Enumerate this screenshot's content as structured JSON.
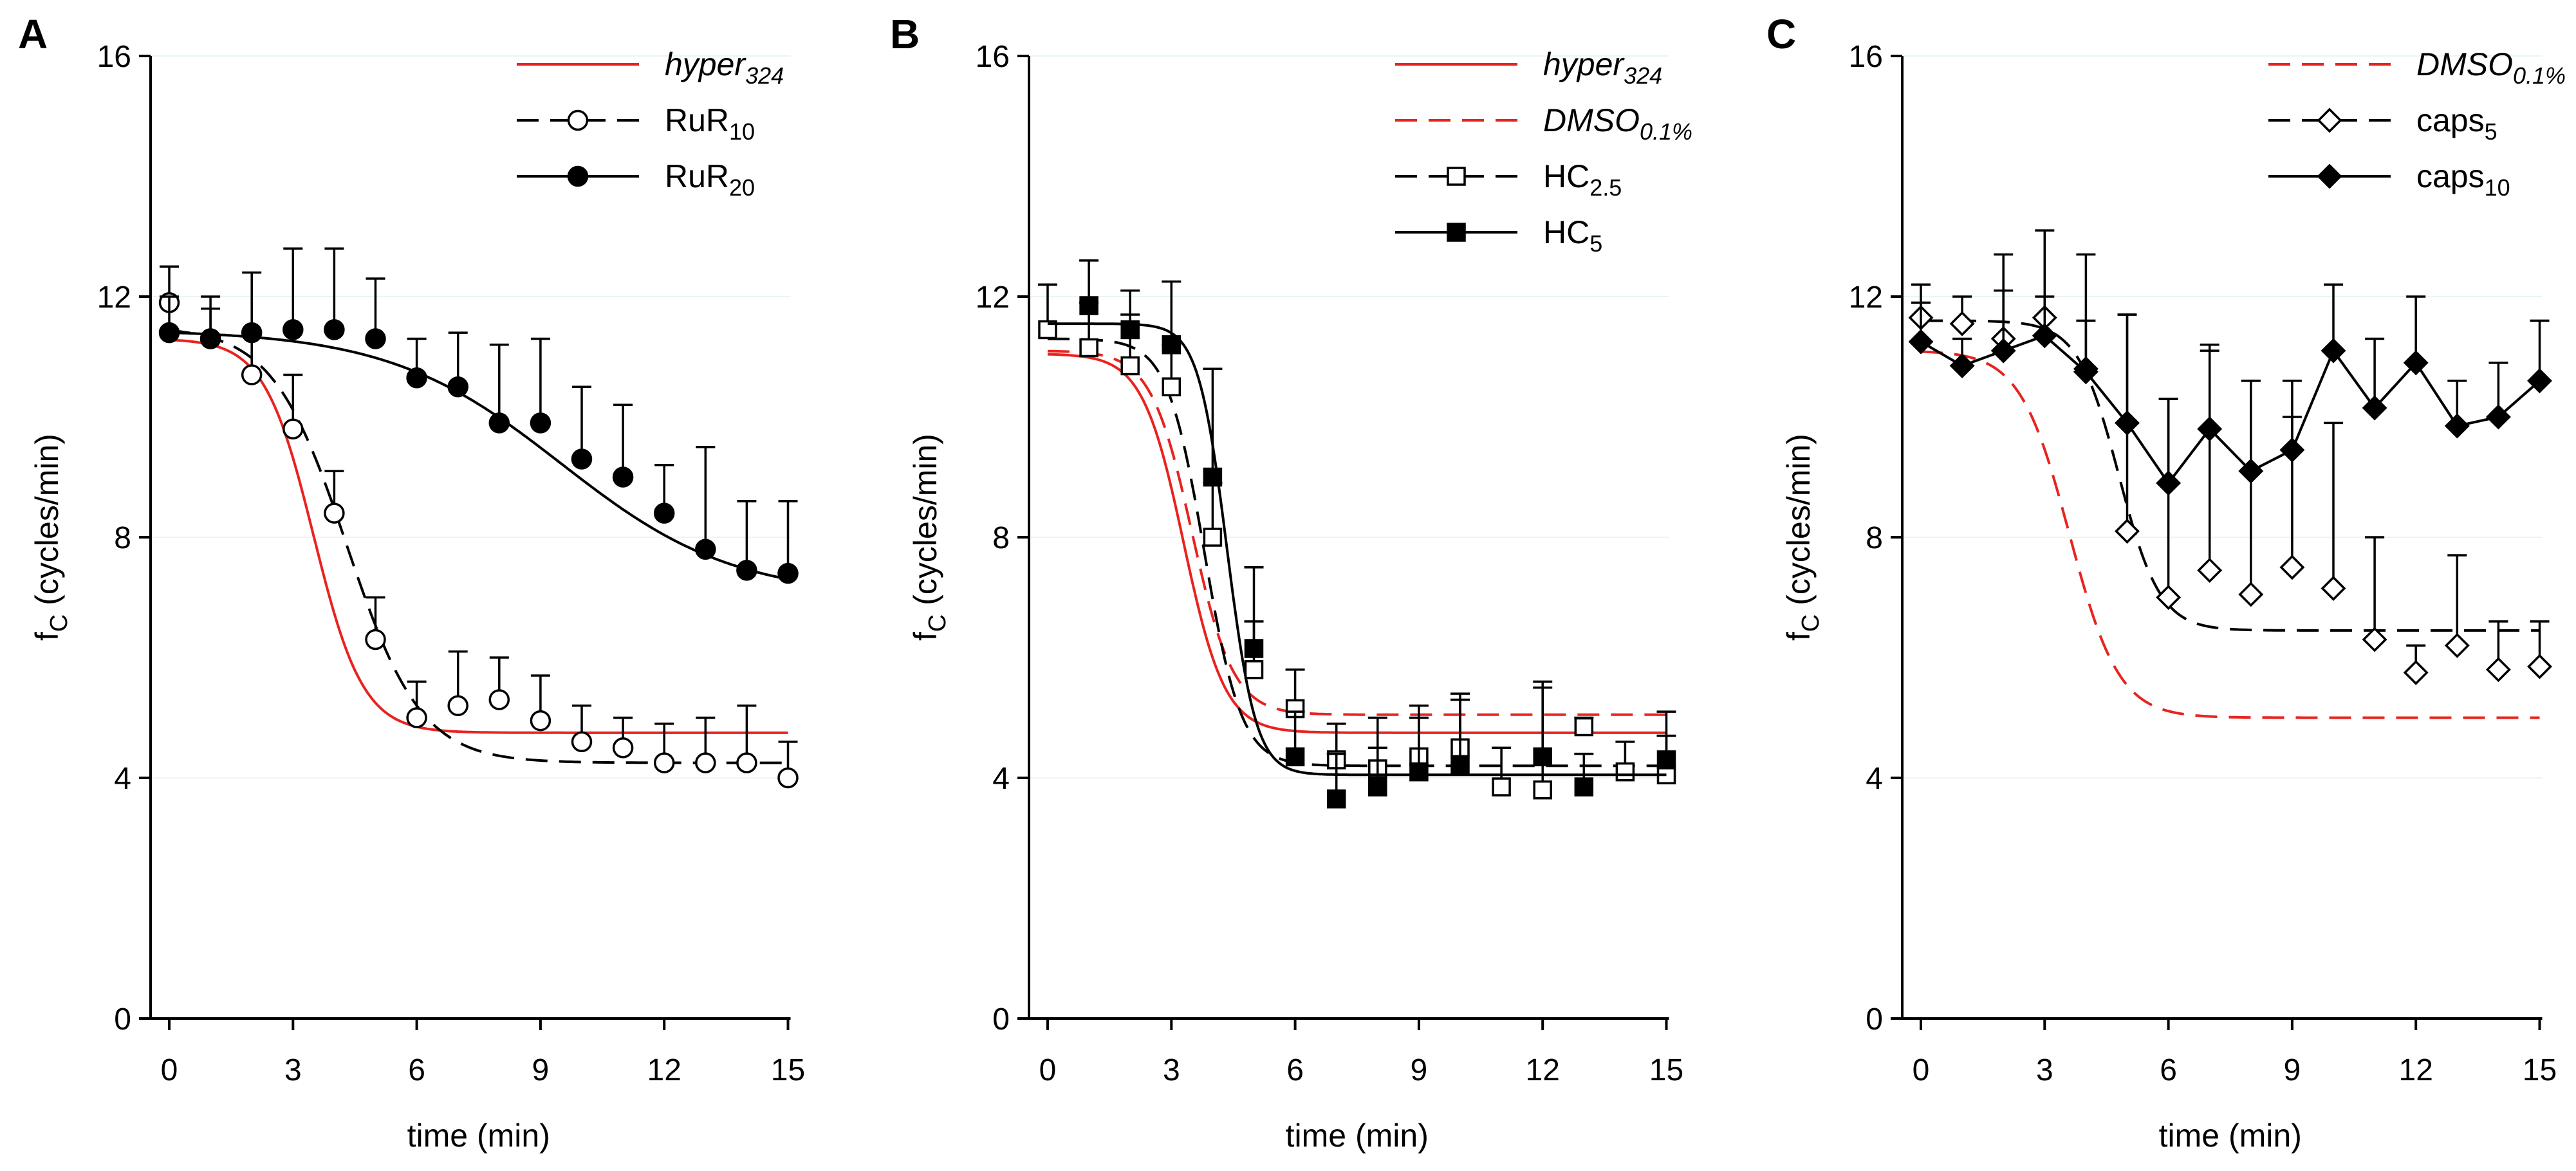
{
  "figure": {
    "axis_labels": {
      "x": "time (min)",
      "y_main": "f",
      "y_sub": "C",
      "y_unit": "(cycles/min)"
    }
  },
  "chart_data": [
    {
      "panel": "A",
      "type": "line",
      "xlabel": "time (min)",
      "ylabel": "fC (cycles/min)",
      "xlim": [
        -0.5,
        15
      ],
      "ylim": [
        0,
        16
      ],
      "xticks": [
        0,
        3,
        6,
        9,
        12,
        15
      ],
      "yticks": [
        0,
        4,
        8,
        12,
        16
      ],
      "legend_position": "top-right",
      "series": [
        {
          "name": "hyper324",
          "label_main": "hyper",
          "label_sub": "324",
          "italic": true,
          "color": "#e8231f",
          "dash": "solid",
          "marker": "none",
          "fit": {
            "top": 11.3,
            "bottom": 4.75,
            "x50": 3.5,
            "slope": 0.6
          }
        },
        {
          "name": "RuR10",
          "label_main": "RuR",
          "label_sub": "10",
          "italic": false,
          "color": "#000000",
          "dash": "dashed",
          "marker": "open-circle",
          "x": [
            0,
            1,
            2,
            3,
            4,
            5,
            6,
            7,
            8,
            9,
            10,
            11,
            12,
            13,
            14,
            15
          ],
          "y": [
            11.9,
            11.3,
            10.7,
            9.8,
            8.4,
            6.3,
            5.0,
            5.2,
            5.3,
            4.95,
            4.6,
            4.5,
            4.25,
            4.25,
            4.25,
            4.0
          ],
          "err": [
            12.5,
            11.8,
            11.4,
            10.7,
            9.1,
            7.0,
            5.6,
            6.1,
            6.0,
            5.7,
            5.2,
            5.0,
            4.9,
            5.0,
            5.2,
            4.6
          ],
          "fit": {
            "top": 11.5,
            "bottom": 4.25,
            "x50": 4.3,
            "slope": 0.9
          }
        },
        {
          "name": "RuR20",
          "label_main": "RuR",
          "label_sub": "20",
          "italic": false,
          "color": "#000000",
          "dash": "solid",
          "marker": "filled-circle",
          "x": [
            0,
            1,
            2,
            3,
            4,
            5,
            6,
            7,
            8,
            9,
            10,
            11,
            12,
            13,
            14,
            15
          ],
          "y": [
            11.4,
            11.3,
            11.4,
            11.45,
            11.45,
            11.3,
            10.65,
            10.5,
            9.9,
            9.9,
            9.3,
            9.0,
            8.4,
            7.8,
            7.45,
            7.4
          ],
          "err": [
            12.0,
            12.0,
            12.4,
            12.8,
            12.8,
            12.3,
            11.3,
            11.4,
            11.2,
            11.3,
            10.5,
            10.2,
            9.2,
            9.5,
            8.6,
            8.6
          ],
          "fit": {
            "top": 11.45,
            "bottom": 7.0,
            "x50": 9.5,
            "slope": 2.1
          }
        }
      ]
    },
    {
      "panel": "B",
      "type": "line",
      "xlabel": "time (min)",
      "ylabel": "fC (cycles/min)",
      "xlim": [
        -0.5,
        15
      ],
      "ylim": [
        0,
        16
      ],
      "xticks": [
        0,
        3,
        6,
        9,
        12,
        15
      ],
      "yticks": [
        0,
        4,
        8,
        12,
        16
      ],
      "legend_position": "top-right",
      "series": [
        {
          "name": "hyper324",
          "label_main": "hyper",
          "label_sub": "324",
          "italic": true,
          "color": "#e8231f",
          "dash": "solid",
          "marker": "none",
          "fit": {
            "top": 11.05,
            "bottom": 4.75,
            "x50": 3.3,
            "slope": 0.5
          }
        },
        {
          "name": "DMSO0.1%",
          "label_main": "DMSO",
          "label_sub": "0.1%",
          "italic": true,
          "color": "#e8231f",
          "dash": "dashed",
          "marker": "none",
          "fit": {
            "top": 11.1,
            "bottom": 5.05,
            "x50": 3.5,
            "slope": 0.5
          }
        },
        {
          "name": "HC2.5",
          "label_main": "HC",
          "label_sub": "2.5",
          "italic": false,
          "color": "#000000",
          "dash": "dashed",
          "marker": "open-square",
          "x": [
            0,
            1,
            2,
            3,
            4,
            5,
            6,
            7,
            8,
            9,
            10,
            11,
            12,
            13,
            14,
            15
          ],
          "y": [
            11.45,
            11.15,
            10.85,
            10.5,
            8.0,
            5.8,
            5.15,
            4.3,
            4.15,
            4.35,
            4.5,
            3.85,
            3.8,
            4.85,
            4.1,
            4.05
          ],
          "err": [
            12.2,
            11.9,
            11.7,
            11.2,
            8.9,
            6.6,
            5.8,
            4.9,
            5.0,
            5.2,
            5.3,
            4.5,
            5.5,
            5.0,
            4.6,
            4.7
          ],
          "fit": {
            "top": 11.3,
            "bottom": 4.2,
            "x50": 3.8,
            "slope": 0.45
          }
        },
        {
          "name": "HC5",
          "label_main": "HC",
          "label_sub": "5",
          "italic": false,
          "color": "#000000",
          "dash": "solid",
          "marker": "filled-square",
          "x": [
            1,
            2,
            3,
            4,
            5,
            6,
            7,
            8,
            9,
            10,
            12,
            13,
            15
          ],
          "y": [
            11.85,
            11.45,
            11.2,
            9.0,
            6.15,
            4.35,
            3.65,
            3.85,
            4.1,
            4.2,
            4.35,
            3.85,
            4.3
          ],
          "err": [
            12.6,
            12.1,
            12.25,
            10.8,
            7.5,
            5.1,
            4.4,
            4.5,
            5.0,
            5.4,
            5.6,
            4.4,
            5.1
          ],
          "fit": {
            "top": 11.55,
            "bottom": 4.05,
            "x50": 4.35,
            "slope": 0.35
          }
        }
      ]
    },
    {
      "panel": "C",
      "type": "line",
      "xlabel": "time (min)",
      "ylabel": "fC (cycles/min)",
      "xlim": [
        -0.5,
        15
      ],
      "ylim": [
        0,
        16
      ],
      "xticks": [
        0,
        3,
        6,
        9,
        12,
        15
      ],
      "yticks": [
        0,
        4,
        8,
        12,
        16
      ],
      "legend_position": "top-right",
      "series": [
        {
          "name": "DMSO0.1%",
          "label_main": "DMSO",
          "label_sub": "0.1%",
          "italic": true,
          "color": "#e8231f",
          "dash": "dashed",
          "marker": "none",
          "fit": {
            "top": 11.1,
            "bottom": 5.0,
            "x50": 3.6,
            "slope": 0.6
          }
        },
        {
          "name": "caps5",
          "label_main": "caps",
          "label_sub": "5",
          "italic": false,
          "color": "#000000",
          "dash": "dashed",
          "marker": "open-diamond",
          "x": [
            0,
            1,
            2,
            3,
            4,
            5,
            6,
            7,
            8,
            9,
            10,
            11,
            12,
            13,
            14,
            15
          ],
          "y": [
            11.65,
            11.55,
            11.3,
            11.65,
            10.8,
            8.1,
            7.0,
            7.45,
            7.05,
            7.5,
            7.15,
            6.3,
            5.75,
            6.2,
            5.8,
            5.85
          ],
          "err": [
            12.2,
            12.0,
            12.7,
            13.1,
            12.7,
            11.7,
            10.3,
            11.1,
            10.6,
            10.0,
            9.9,
            8.0,
            6.2,
            7.7,
            6.6,
            6.6
          ],
          "fit": {
            "top": 11.6,
            "bottom": 6.45,
            "x50": 4.8,
            "slope": 0.5
          }
        },
        {
          "name": "caps10",
          "label_main": "caps",
          "label_sub": "10",
          "italic": false,
          "color": "#000000",
          "dash": "solid",
          "marker": "filled-diamond",
          "x": [
            0,
            1,
            2,
            3,
            4,
            5,
            6,
            7,
            8,
            9,
            10,
            11,
            12,
            13,
            14,
            15
          ],
          "y": [
            11.25,
            10.85,
            11.1,
            11.35,
            10.75,
            9.9,
            8.9,
            9.8,
            9.1,
            9.45,
            11.1,
            10.15,
            10.9,
            9.85,
            10.0,
            10.6
          ],
          "err": [
            11.9,
            11.3,
            12.1,
            12.0,
            11.6,
            11.7,
            10.3,
            11.2,
            10.6,
            10.6,
            12.2,
            11.3,
            12.0,
            10.6,
            10.9,
            11.6
          ],
          "connect": true
        }
      ]
    }
  ]
}
